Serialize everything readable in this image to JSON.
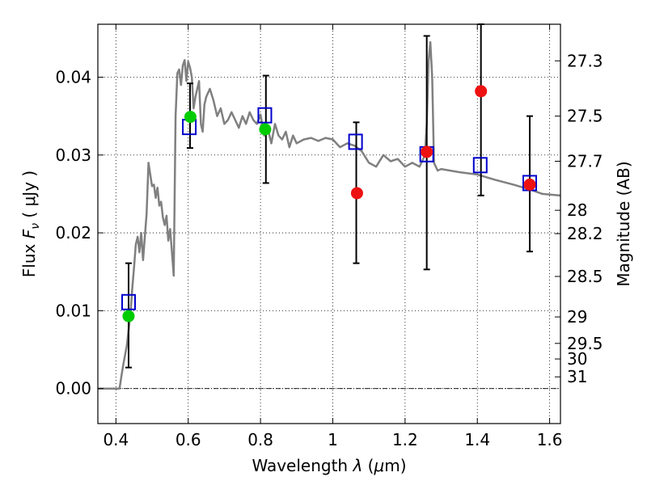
{
  "chart_data": {
    "type": "scatter",
    "xlabel": {
      "prefix": "Wavelength  ",
      "symbol": "λ",
      "unit_open": " (",
      "unit_mu": "μ",
      "unit_rest": "m)"
    },
    "ylabel": {
      "prefix": "Flux  ",
      "symbol": "F",
      "sub": "ν",
      "unit": "  ( μJy )"
    },
    "y2label": "Magnitude (AB)",
    "xlim": [
      0.35,
      1.63
    ],
    "ylim": [
      -0.0045,
      0.0468
    ],
    "grid": true,
    "x_ticks": [
      {
        "value": 0.4,
        "label": "0.4"
      },
      {
        "value": 0.6,
        "label": "0.6"
      },
      {
        "value": 0.8,
        "label": "0.8"
      },
      {
        "value": 1.0,
        "label": "1"
      },
      {
        "value": 1.2,
        "label": "1.2"
      },
      {
        "value": 1.4,
        "label": "1.4"
      },
      {
        "value": 1.6,
        "label": "1.6"
      }
    ],
    "y_ticks": [
      {
        "value": 0.0,
        "label": "0.00"
      },
      {
        "value": 0.01,
        "label": "0.01"
      },
      {
        "value": 0.02,
        "label": "0.02"
      },
      {
        "value": 0.03,
        "label": "0.03"
      },
      {
        "value": 0.04,
        "label": "0.04"
      }
    ],
    "mag_ticks": [
      {
        "flux": 0.0421,
        "label": "27.3"
      },
      {
        "flux": 0.035,
        "label": "27.5"
      },
      {
        "flux": 0.0292,
        "label": "27.7"
      },
      {
        "flux": 0.0229,
        "label": "28"
      },
      {
        "flux": 0.0199,
        "label": "28.2"
      },
      {
        "flux": 0.0144,
        "label": "28.5"
      },
      {
        "flux": 0.0092,
        "label": "29"
      },
      {
        "flux": 0.0058,
        "label": "29.5"
      },
      {
        "flux": 0.0038,
        "label": "30"
      },
      {
        "flux": 0.0015,
        "label": "31"
      }
    ],
    "series": [
      {
        "kind": "line",
        "color": "#808080",
        "x": [
          0.35,
          0.41,
          0.415,
          0.42,
          0.43,
          0.44,
          0.445,
          0.45,
          0.455,
          0.46,
          0.465,
          0.47,
          0.475,
          0.48,
          0.485,
          0.49,
          0.495,
          0.5,
          0.505,
          0.51,
          0.515,
          0.52,
          0.525,
          0.53,
          0.535,
          0.54,
          0.545,
          0.55,
          0.555,
          0.56,
          0.565,
          0.57,
          0.575,
          0.58,
          0.585,
          0.59,
          0.595,
          0.6,
          0.605,
          0.61,
          0.615,
          0.62,
          0.625,
          0.63,
          0.635,
          0.64,
          0.645,
          0.65,
          0.66,
          0.67,
          0.68,
          0.69,
          0.7,
          0.71,
          0.72,
          0.73,
          0.74,
          0.75,
          0.76,
          0.77,
          0.78,
          0.79,
          0.8,
          0.81,
          0.82,
          0.83,
          0.84,
          0.85,
          0.86,
          0.87,
          0.88,
          0.89,
          0.9,
          0.92,
          0.94,
          0.96,
          0.98,
          1.0,
          1.02,
          1.04,
          1.06,
          1.08,
          1.1,
          1.12,
          1.14,
          1.16,
          1.18,
          1.2,
          1.22,
          1.24,
          1.25,
          1.255,
          1.26,
          1.265,
          1.27,
          1.275,
          1.28,
          1.29,
          1.3,
          1.35,
          1.4,
          1.45,
          1.5,
          1.55,
          1.58,
          1.63
        ],
        "y": [
          0.0,
          0.0,
          0.0015,
          0.003,
          0.0055,
          0.0095,
          0.0128,
          0.0155,
          0.0185,
          0.0195,
          0.0175,
          0.02,
          0.0165,
          0.0195,
          0.0225,
          0.029,
          0.0275,
          0.026,
          0.0262,
          0.0245,
          0.0258,
          0.0235,
          0.024,
          0.022,
          0.021,
          0.0222,
          0.019,
          0.0205,
          0.0175,
          0.0145,
          0.035,
          0.0405,
          0.041,
          0.039,
          0.0415,
          0.0422,
          0.0395,
          0.042,
          0.0412,
          0.04,
          0.036,
          0.0375,
          0.0385,
          0.0395,
          0.034,
          0.033,
          0.0365,
          0.0375,
          0.0385,
          0.037,
          0.035,
          0.036,
          0.034,
          0.0345,
          0.0355,
          0.0345,
          0.0335,
          0.035,
          0.034,
          0.0355,
          0.0345,
          0.034,
          0.0352,
          0.0325,
          0.0335,
          0.0315,
          0.034,
          0.0325,
          0.032,
          0.033,
          0.031,
          0.0325,
          0.0315,
          0.032,
          0.0322,
          0.0318,
          0.0322,
          0.032,
          0.031,
          0.0315,
          0.0312,
          0.0305,
          0.029,
          0.0285,
          0.03,
          0.0292,
          0.0295,
          0.0285,
          0.029,
          0.0285,
          0.0295,
          0.03,
          0.034,
          0.042,
          0.0445,
          0.04,
          0.029,
          0.028,
          0.0282,
          0.0278,
          0.0275,
          0.0268,
          0.0262,
          0.0255,
          0.025,
          0.0248
        ]
      },
      {
        "kind": "errorbar",
        "color": "#000000",
        "x": [
          0.435,
          0.605,
          0.815,
          1.065,
          1.26,
          1.41,
          1.545
        ],
        "ylow": [
          0.0027,
          0.0309,
          0.0264,
          0.0161,
          0.0153,
          0.0248,
          0.0176
        ],
        "yhigh": [
          0.0161,
          0.0392,
          0.0402,
          0.0342,
          0.0453,
          0.0468,
          0.035
        ]
      },
      {
        "kind": "marker-square",
        "color": "#0000cc",
        "x": [
          0.435,
          0.603,
          0.812,
          1.063,
          1.26,
          1.408,
          1.545
        ],
        "y": [
          0.0111,
          0.0336,
          0.0351,
          0.0317,
          0.0301,
          0.0287,
          0.0264
        ]
      },
      {
        "kind": "marker-circle",
        "color": "#00cc00",
        "x": [
          0.435,
          0.606,
          0.813
        ],
        "y": [
          0.0093,
          0.0349,
          0.0333
        ]
      },
      {
        "kind": "marker-circle",
        "color": "#ee1111",
        "x": [
          1.067,
          1.26,
          1.41,
          1.545
        ],
        "y": [
          0.0251,
          0.0304,
          0.0382,
          0.0262
        ]
      }
    ]
  }
}
